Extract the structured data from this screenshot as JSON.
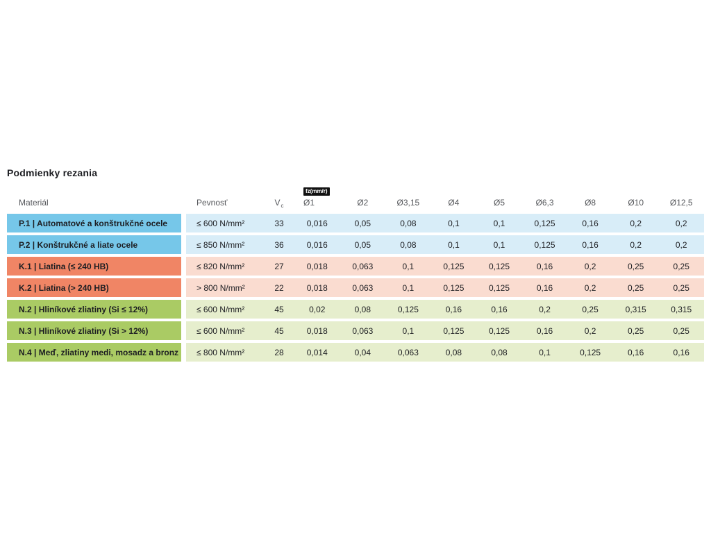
{
  "page": {
    "title": "Podmienky rezania"
  },
  "colors": {
    "page_bg": "#FFFFFF",
    "text_dark": "#1D1E22",
    "header_text": "#55575B",
    "badge_bg": "#111111",
    "badge_text": "#FFFFFF",
    "blue_label_bg": "#76C7E9",
    "blue_row_bg": "#D8EDF8",
    "orange_label_bg": "#F08565",
    "orange_row_bg": "#FADCD0",
    "green_label_bg": "#AACB64",
    "green_row_bg": "#E6EECD"
  },
  "table": {
    "headers": {
      "material": "Materiál",
      "pevnost": "Pevnosť",
      "vc_main": "V",
      "vc_sub": "c"
    },
    "fz_badge": "fz(mm/r)",
    "diameter_headers": [
      "Ø1",
      "Ø2",
      "Ø3,15",
      "Ø4",
      "Ø5",
      "Ø6,3",
      "Ø8",
      "Ø10",
      "Ø12,5"
    ],
    "rows": [
      {
        "group": "blue",
        "label": "P.1 | Automatové a konštrukčné ocele",
        "pevnost": "≤ 600 N/mm²",
        "vc": "33",
        "values": [
          "0,016",
          "0,05",
          "0,08",
          "0,1",
          "0,1",
          "0,125",
          "0,16",
          "0,2",
          "0,2"
        ]
      },
      {
        "group": "blue",
        "label": "P.2 | Konštrukčné a liate ocele",
        "pevnost": "≤ 850 N/mm²",
        "vc": "36",
        "values": [
          "0,016",
          "0,05",
          "0,08",
          "0,1",
          "0,1",
          "0,125",
          "0,16",
          "0,2",
          "0,2"
        ]
      },
      {
        "group": "orange",
        "label": "K.1 | Liatina (≤ 240 HB)",
        "pevnost": "≤ 820 N/mm²",
        "vc": "27",
        "values": [
          "0,018",
          "0,063",
          "0,1",
          "0,125",
          "0,125",
          "0,16",
          "0,2",
          "0,25",
          "0,25"
        ]
      },
      {
        "group": "orange",
        "label": "K.2 | Liatina (> 240 HB)",
        "pevnost": "> 800 N/mm²",
        "vc": "22",
        "values": [
          "0,018",
          "0,063",
          "0,1",
          "0,125",
          "0,125",
          "0,16",
          "0,2",
          "0,25",
          "0,25"
        ]
      },
      {
        "group": "green",
        "label": "N.2 | Hliníkové zliatiny (Si ≤ 12%)",
        "pevnost": "≤ 600 N/mm²",
        "vc": "45",
        "values": [
          "0,02",
          "0,08",
          "0,125",
          "0,16",
          "0,16",
          "0,2",
          "0,25",
          "0,315",
          "0,315"
        ]
      },
      {
        "group": "green",
        "label": "N.3 | Hliníkové zliatiny (Si > 12%)",
        "pevnost": "≤ 600 N/mm²",
        "vc": "45",
        "values": [
          "0,018",
          "0,063",
          "0,1",
          "0,125",
          "0,125",
          "0,16",
          "0,2",
          "0,25",
          "0,25"
        ]
      },
      {
        "group": "green",
        "label": "N.4 | Meď, zliatiny medi, mosadz a bronz",
        "pevnost": "≤ 800 N/mm²",
        "vc": "28",
        "values": [
          "0,014",
          "0,04",
          "0,063",
          "0,08",
          "0,08",
          "0,1",
          "0,125",
          "0,16",
          "0,16"
        ]
      }
    ]
  }
}
